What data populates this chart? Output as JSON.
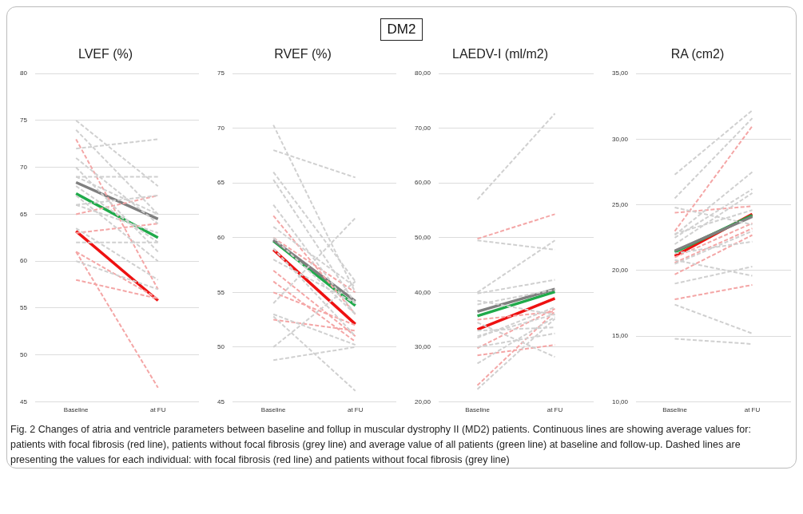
{
  "chart_data": [
    {
      "type": "other",
      "title": "DM2"
    },
    {
      "type": "line",
      "title": "LVEF (%)",
      "categories": [
        "Baseline",
        "at FU"
      ],
      "ylim": [
        45,
        80
      ],
      "yticks": [
        45,
        50,
        55,
        60,
        65,
        70,
        75,
        80
      ],
      "grid": "y",
      "marker": "none",
      "series": [
        {
          "color": "#d0d0d0",
          "line_style": "dashed",
          "values": [
            75,
            68
          ]
        },
        {
          "color": "#d0d0d0",
          "line_style": "dashed",
          "values": [
            74,
            65
          ]
        },
        {
          "color": "#d0d0d0",
          "line_style": "dashed",
          "values": [
            72,
            73
          ]
        },
        {
          "color": "#d0d0d0",
          "line_style": "dashed",
          "values": [
            71,
            64
          ]
        },
        {
          "color": "#d0d0d0",
          "line_style": "dashed",
          "values": [
            70,
            61
          ]
        },
        {
          "color": "#d0d0d0",
          "line_style": "dashed",
          "values": [
            69,
            69
          ]
        },
        {
          "color": "#d0d0d0",
          "line_style": "dashed",
          "values": [
            69,
            65
          ]
        },
        {
          "color": "#d0d0d0",
          "line_style": "dashed",
          "values": [
            68,
            62
          ]
        },
        {
          "color": "#d0d0d0",
          "line_style": "dashed",
          "values": [
            67,
            60
          ]
        },
        {
          "color": "#d0d0d0",
          "line_style": "dashed",
          "values": [
            66,
            67
          ]
        },
        {
          "color": "#d0d0d0",
          "line_style": "dashed",
          "values": [
            66,
            63
          ]
        },
        {
          "color": "#d0d0d0",
          "line_style": "dashed",
          "values": [
            63.5,
            58
          ]
        },
        {
          "color": "#d0d0d0",
          "line_style": "dashed",
          "values": [
            62,
            62
          ]
        },
        {
          "color": "#d0d0d0",
          "line_style": "dashed",
          "values": [
            60,
            57
          ]
        },
        {
          "color": "#f4a6a6",
          "line_style": "dashed",
          "values": [
            73,
            57
          ]
        },
        {
          "color": "#f4a6a6",
          "line_style": "dashed",
          "values": [
            65,
            67
          ]
        },
        {
          "color": "#f4a6a6",
          "line_style": "dashed",
          "values": [
            63,
            64
          ]
        },
        {
          "color": "#f4a6a6",
          "line_style": "dashed",
          "values": [
            61,
            56
          ]
        },
        {
          "color": "#f4a6a6",
          "line_style": "dashed",
          "values": [
            58,
            56
          ]
        },
        {
          "color": "#f4a6a6",
          "line_style": "dashed",
          "values": [
            61,
            46.5
          ]
        },
        {
          "color": "#7f7f7f",
          "line_style": "solid",
          "values": [
            68.4,
            64.5
          ]
        },
        {
          "color": "#1faa4a",
          "line_style": "solid",
          "values": [
            67.2,
            62.5
          ]
        },
        {
          "color": "#ee1111",
          "line_style": "solid",
          "values": [
            63.2,
            55.8
          ]
        }
      ]
    },
    {
      "type": "line",
      "title": "RVEF (%)",
      "categories": [
        "Baseline",
        "at FU"
      ],
      "ylim": [
        45,
        75
      ],
      "yticks": [
        45,
        50,
        55,
        60,
        65,
        70,
        75
      ],
      "grid": "y",
      "marker": "none",
      "series": [
        {
          "color": "#d0d0d0",
          "line_style": "dashed",
          "values": [
            70.3,
            55
          ]
        },
        {
          "color": "#d0d0d0",
          "line_style": "dashed",
          "values": [
            68,
            65.5
          ]
        },
        {
          "color": "#d0d0d0",
          "line_style": "dashed",
          "values": [
            66,
            56
          ]
        },
        {
          "color": "#d0d0d0",
          "line_style": "dashed",
          "values": [
            65.3,
            54
          ]
        },
        {
          "color": "#d0d0d0",
          "line_style": "dashed",
          "values": [
            63,
            53
          ]
        },
        {
          "color": "#d0d0d0",
          "line_style": "dashed",
          "values": [
            61,
            55.5
          ]
        },
        {
          "color": "#d0d0d0",
          "line_style": "dashed",
          "values": [
            60,
            53
          ]
        },
        {
          "color": "#d0d0d0",
          "line_style": "dashed",
          "values": [
            59,
            51
          ]
        },
        {
          "color": "#d0d0d0",
          "line_style": "dashed",
          "values": [
            58,
            54
          ]
        },
        {
          "color": "#d0d0d0",
          "line_style": "dashed",
          "values": [
            54,
            61.8
          ]
        },
        {
          "color": "#d0d0d0",
          "line_style": "dashed",
          "values": [
            53,
            50.2
          ]
        },
        {
          "color": "#d0d0d0",
          "line_style": "dashed",
          "values": [
            52.8,
            46
          ]
        },
        {
          "color": "#d0d0d0",
          "line_style": "dashed",
          "values": [
            50,
            56
          ]
        },
        {
          "color": "#d0d0d0",
          "line_style": "dashed",
          "values": [
            48.8,
            50
          ]
        },
        {
          "color": "#f4a6a6",
          "line_style": "dashed",
          "values": [
            62,
            53
          ]
        },
        {
          "color": "#f4a6a6",
          "line_style": "dashed",
          "values": [
            60,
            55
          ]
        },
        {
          "color": "#f4a6a6",
          "line_style": "dashed",
          "values": [
            57,
            51
          ]
        },
        {
          "color": "#f4a6a6",
          "line_style": "dashed",
          "values": [
            56,
            50.5
          ]
        },
        {
          "color": "#f4a6a6",
          "line_style": "dashed",
          "values": [
            55,
            52
          ]
        },
        {
          "color": "#f4a6a6",
          "line_style": "dashed",
          "values": [
            52.5,
            51.5
          ]
        },
        {
          "color": "#7f7f7f",
          "line_style": "solid",
          "values": [
            59.8,
            54.2
          ]
        },
        {
          "color": "#1faa4a",
          "line_style": "solid",
          "values": [
            59.7,
            53.8
          ]
        },
        {
          "color": "#ee1111",
          "line_style": "solid",
          "values": [
            58.9,
            52.1
          ]
        }
      ]
    },
    {
      "type": "line",
      "title": "LAEDV-I (ml/m2)",
      "categories": [
        "Baseline",
        "at FU"
      ],
      "ylim": [
        20,
        80
      ],
      "yticks": [
        {
          "value": 20,
          "label": "20,00"
        },
        {
          "value": 30,
          "label": "30,00"
        },
        {
          "value": 40,
          "label": "40,00"
        },
        {
          "value": 50,
          "label": "50,00"
        },
        {
          "value": 60,
          "label": "60,00"
        },
        {
          "value": 70,
          "label": "70,00"
        },
        {
          "value": 80,
          "label": "80,00"
        }
      ],
      "grid": "y",
      "marker": "none",
      "series": [
        {
          "color": "#d0d0d0",
          "line_style": "dashed",
          "values": [
            57,
            72.7
          ]
        },
        {
          "color": "#d0d0d0",
          "line_style": "dashed",
          "values": [
            49.5,
            47.8
          ]
        },
        {
          "color": "#d0d0d0",
          "line_style": "dashed",
          "values": [
            40,
            49.5
          ]
        },
        {
          "color": "#d0d0d0",
          "line_style": "dashed",
          "values": [
            39.8,
            42.3
          ]
        },
        {
          "color": "#d0d0d0",
          "line_style": "dashed",
          "values": [
            38.5,
            35.9
          ]
        },
        {
          "color": "#d0d0d0",
          "line_style": "dashed",
          "values": [
            37.8,
            40.5
          ]
        },
        {
          "color": "#d0d0d0",
          "line_style": "dashed",
          "values": [
            34.5,
            28.2
          ]
        },
        {
          "color": "#d0d0d0",
          "line_style": "dashed",
          "values": [
            33,
            33.6
          ]
        },
        {
          "color": "#d0d0d0",
          "line_style": "dashed",
          "values": [
            32,
            36
          ]
        },
        {
          "color": "#d0d0d0",
          "line_style": "dashed",
          "values": [
            31.7,
            37.3
          ]
        },
        {
          "color": "#d0d0d0",
          "line_style": "dashed",
          "values": [
            30,
            32.5
          ]
        },
        {
          "color": "#d0d0d0",
          "line_style": "dashed",
          "values": [
            27,
            35.5
          ]
        },
        {
          "color": "#d0d0d0",
          "line_style": "dashed",
          "values": [
            22.3,
            35.2
          ]
        },
        {
          "color": "#f4a6a6",
          "line_style": "dashed",
          "values": [
            49.8,
            54.3
          ]
        },
        {
          "color": "#f4a6a6",
          "line_style": "dashed",
          "values": [
            35,
            36.5
          ]
        },
        {
          "color": "#f4a6a6",
          "line_style": "dashed",
          "values": [
            29.8,
            37
          ]
        },
        {
          "color": "#f4a6a6",
          "line_style": "dashed",
          "values": [
            28.5,
            30.4
          ]
        },
        {
          "color": "#f4a6a6",
          "line_style": "dashed",
          "values": [
            23,
            36.5
          ]
        },
        {
          "color": "#7f7f7f",
          "line_style": "solid",
          "values": [
            36.5,
            40.6
          ]
        },
        {
          "color": "#1faa4a",
          "line_style": "solid",
          "values": [
            35.7,
            40.1
          ]
        },
        {
          "color": "#ee1111",
          "line_style": "solid",
          "values": [
            33.2,
            38.9
          ]
        }
      ]
    },
    {
      "type": "line",
      "title": "RA (cm2)",
      "categories": [
        "Baseline",
        "at FU"
      ],
      "ylim": [
        10,
        35
      ],
      "yticks": [
        {
          "value": 10,
          "label": "10,00"
        },
        {
          "value": 15,
          "label": "15,00"
        },
        {
          "value": 20,
          "label": "20,00"
        },
        {
          "value": 25,
          "label": "25,00"
        },
        {
          "value": 30,
          "label": "30,00"
        },
        {
          "value": 35,
          "label": "35,00"
        }
      ],
      "grid": "y",
      "marker": "none",
      "series": [
        {
          "color": "#d0d0d0",
          "line_style": "dashed",
          "values": [
            27.3,
            32.2
          ]
        },
        {
          "color": "#d0d0d0",
          "line_style": "dashed",
          "values": [
            25.5,
            31.6
          ]
        },
        {
          "color": "#d0d0d0",
          "line_style": "dashed",
          "values": [
            24.8,
            23.5
          ]
        },
        {
          "color": "#d0d0d0",
          "line_style": "dashed",
          "values": [
            22.8,
            24.6
          ]
        },
        {
          "color": "#d0d0d0",
          "line_style": "dashed",
          "values": [
            22.7,
            27.5
          ]
        },
        {
          "color": "#d0d0d0",
          "line_style": "dashed",
          "values": [
            22.5,
            26.2
          ]
        },
        {
          "color": "#d0d0d0",
          "line_style": "dashed",
          "values": [
            22,
            25.9
          ]
        },
        {
          "color": "#d0d0d0",
          "line_style": "dashed",
          "values": [
            21.3,
            22.2
          ]
        },
        {
          "color": "#d0d0d0",
          "line_style": "dashed",
          "values": [
            20.8,
            19.6
          ]
        },
        {
          "color": "#d0d0d0",
          "line_style": "dashed",
          "values": [
            20.5,
            23
          ]
        },
        {
          "color": "#d0d0d0",
          "line_style": "dashed",
          "values": [
            19,
            20.3
          ]
        },
        {
          "color": "#d0d0d0",
          "line_style": "dashed",
          "values": [
            17.4,
            15.2
          ]
        },
        {
          "color": "#d0d0d0",
          "line_style": "dashed",
          "values": [
            14.8,
            14.4
          ]
        },
        {
          "color": "#f4a6a6",
          "line_style": "dashed",
          "values": [
            24.4,
            24.9
          ]
        },
        {
          "color": "#f4a6a6",
          "line_style": "dashed",
          "values": [
            23,
            31
          ]
        },
        {
          "color": "#f4a6a6",
          "line_style": "dashed",
          "values": [
            21,
            23.6
          ]
        },
        {
          "color": "#f4a6a6",
          "line_style": "dashed",
          "values": [
            20.6,
            23.2
          ]
        },
        {
          "color": "#f4a6a6",
          "line_style": "dashed",
          "values": [
            19.7,
            22.7
          ]
        },
        {
          "color": "#f4a6a6",
          "line_style": "dashed",
          "values": [
            17.8,
            18.9
          ]
        },
        {
          "color": "#7f7f7f",
          "line_style": "solid",
          "values": [
            21.5,
            24.1
          ]
        },
        {
          "color": "#1faa4a",
          "line_style": "solid",
          "values": [
            21.4,
            24.2
          ]
        },
        {
          "color": "#ee1111",
          "line_style": "solid",
          "values": [
            21.1,
            24.3
          ]
        }
      ]
    },
    {
      "type": "other",
      "annotations": [
        "Fig. 2  Changes of atria and ventricle parameters between baseline and follup in muscular dystrophy II (MD2) patients. Continuous lines are showing average values for: patients with focal fibrosis (red line), patients without focal fibrosis (grey line) and average value of all patients (green line) at baseline and follow-up. Dashed lines are presenting the values for each individual: with focal fibrosis (red line) and patients without focal fibrosis (grey line)"
      ]
    }
  ]
}
